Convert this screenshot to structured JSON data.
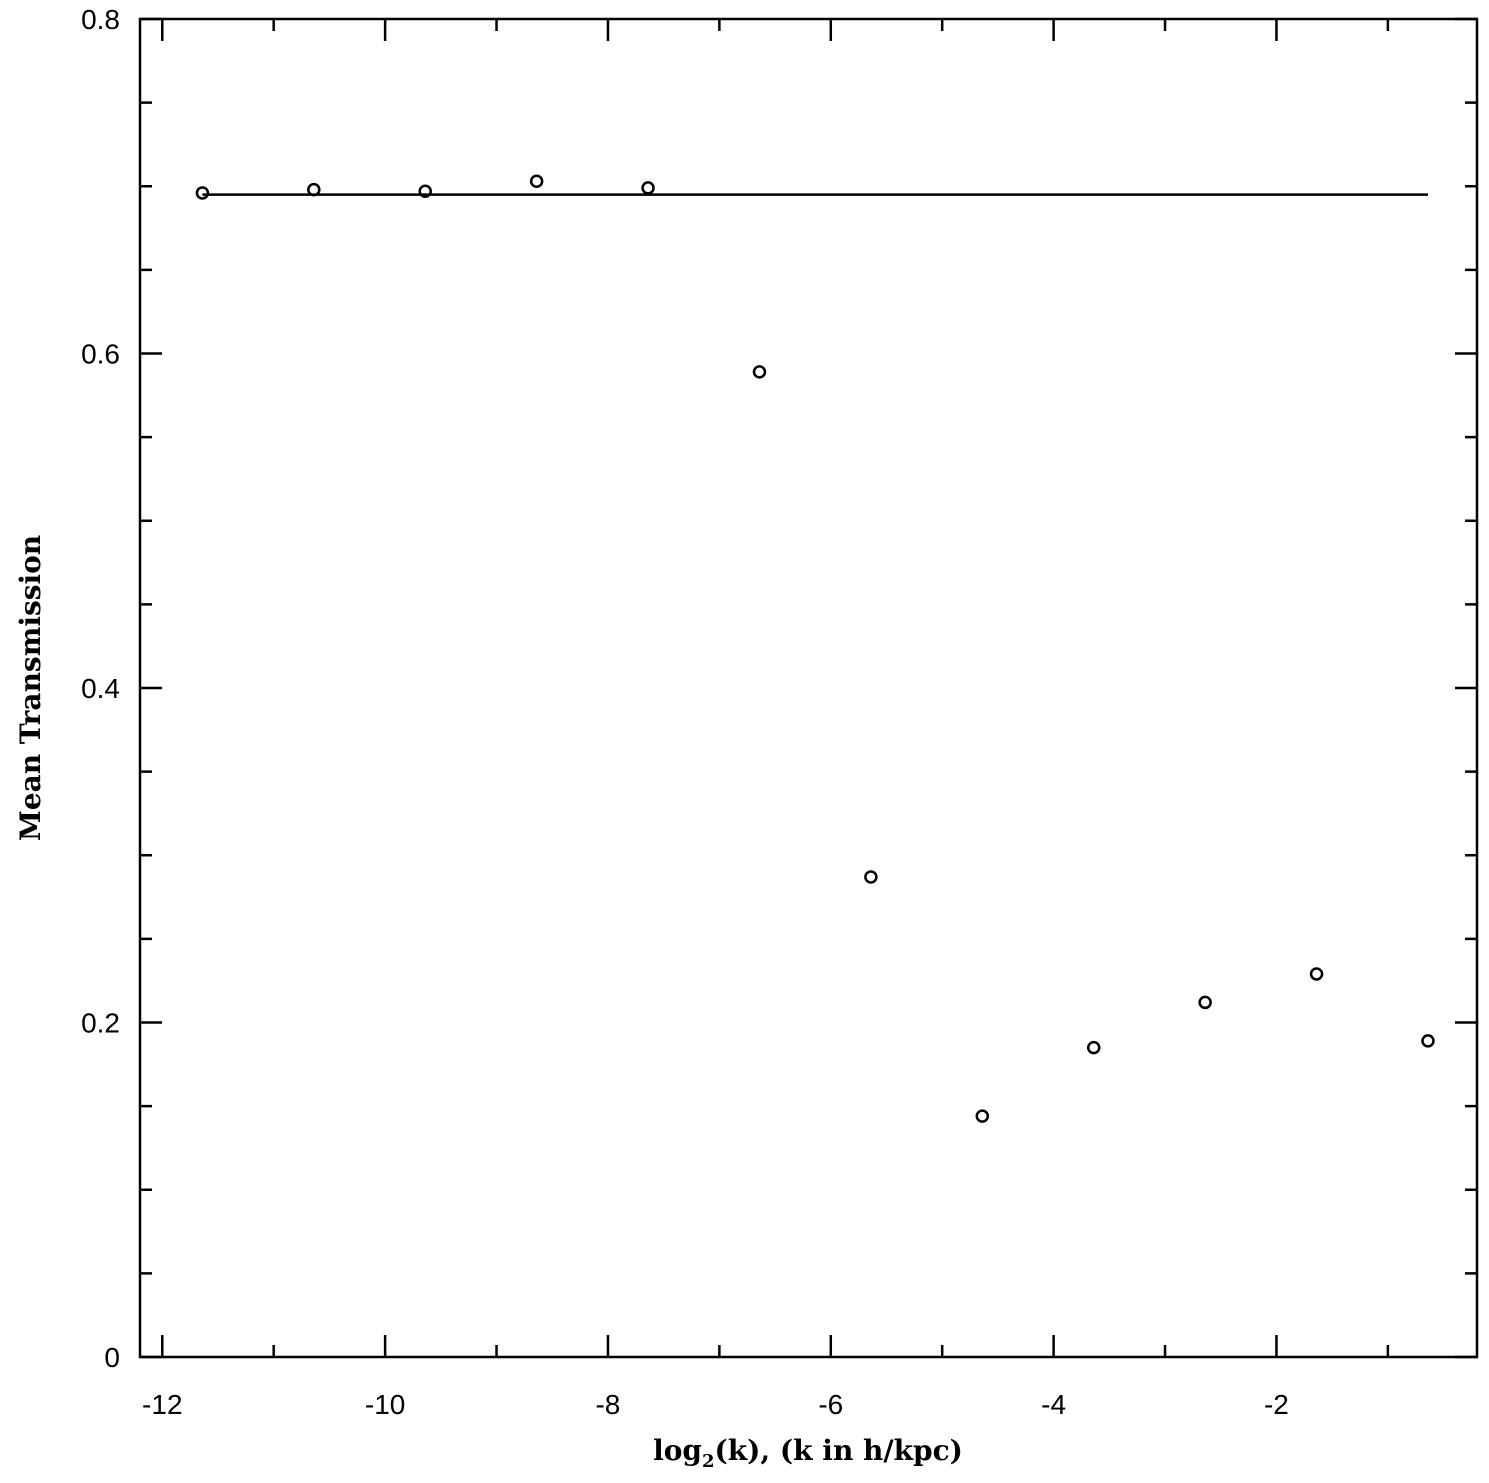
{
  "chart_data": {
    "type": "scatter",
    "title": "",
    "xlabel": "log2(k), (k in h/kpc)",
    "xlabel_parts": {
      "pre": "log",
      "sub": "2",
      "post": "(k), (k in h/kpc)"
    },
    "ylabel": "Mean Transmission",
    "xlim": [
      -12.2,
      -0.2
    ],
    "ylim": [
      0,
      0.8
    ],
    "x_ticks": [
      -12,
      -10,
      -8,
      -6,
      -4,
      -2
    ],
    "x_tick_labels": [
      "-12",
      "-10",
      "-8",
      "-6",
      "-4",
      "-2"
    ],
    "x_minor_step": 1,
    "y_ticks": [
      0,
      0.2,
      0.4,
      0.6,
      0.8
    ],
    "y_tick_labels": [
      "0",
      "0.2",
      "0.4",
      "0.6",
      "0.8"
    ],
    "y_minor_step": 0.05,
    "grid": false,
    "series": [
      {
        "kind": "points",
        "marker": "open-circle",
        "x": [
          -11.64,
          -10.64,
          -9.64,
          -8.64,
          -7.64,
          -6.64,
          -5.64,
          -4.64,
          -3.64,
          -2.64,
          -1.64,
          -0.64
        ],
        "y": [
          0.696,
          0.698,
          0.697,
          0.703,
          0.699,
          0.589,
          0.287,
          0.144,
          0.185,
          0.212,
          0.229,
          0.189
        ]
      },
      {
        "kind": "line",
        "x": [
          -11.64,
          -0.64
        ],
        "y": [
          0.695,
          0.695
        ]
      }
    ]
  }
}
